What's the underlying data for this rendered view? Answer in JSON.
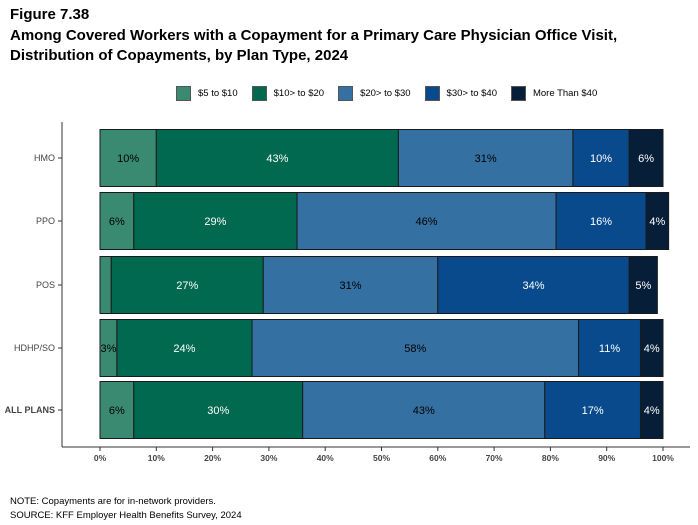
{
  "figure_label": "Figure 7.38",
  "title": "Among Covered Workers with a Copayment for a Primary Care Physician Office Visit, Distribution of Copayments, by Plan Type, 2024",
  "note": "NOTE: Copayments are for in-network providers.",
  "source": "SOURCE: KFF Employer Health Benefits Survey, 2024",
  "chart_data": {
    "type": "bar",
    "orientation": "horizontal",
    "stacked": true,
    "categories": [
      "HMO",
      "PPO",
      "POS",
      "HDHP/SO",
      "ALL PLANS"
    ],
    "series": [
      {
        "name": "$5 to $10",
        "color": "#3a8a72",
        "label_color": "#000000",
        "values": [
          10,
          6,
          2,
          3,
          6
        ],
        "labels": [
          "10%",
          "6%",
          "",
          "3%",
          "6%"
        ]
      },
      {
        "name": "$10> to $20",
        "color": "#00694f",
        "label_color": "#ffffff",
        "values": [
          43,
          29,
          27,
          24,
          30
        ],
        "labels": [
          "43%",
          "29%",
          "27%",
          "24%",
          "30%"
        ]
      },
      {
        "name": "$20> to $30",
        "color": "#3470a1",
        "label_color": "#000000",
        "values": [
          31,
          46,
          31,
          58,
          43
        ],
        "labels": [
          "31%",
          "46%",
          "31%",
          "58%",
          "43%"
        ]
      },
      {
        "name": "$30> to $40",
        "color": "#084a8b",
        "label_color": "#ffffff",
        "values": [
          10,
          16,
          34,
          11,
          17
        ],
        "labels": [
          "10%",
          "16%",
          "34%",
          "11%",
          "17%"
        ]
      },
      {
        "name": "More Than $40",
        "color": "#061e38",
        "label_color": "#ffffff",
        "values": [
          6,
          4,
          5,
          4,
          4
        ],
        "labels": [
          "6%",
          "4%",
          "5%",
          "4%",
          "4%"
        ]
      }
    ],
    "xlim": [
      0,
      100
    ],
    "xticks": [
      "0%",
      "10%",
      "20%",
      "30%",
      "40%",
      "50%",
      "60%",
      "70%",
      "80%",
      "90%",
      "100%"
    ],
    "legend": "top",
    "grid": false
  }
}
